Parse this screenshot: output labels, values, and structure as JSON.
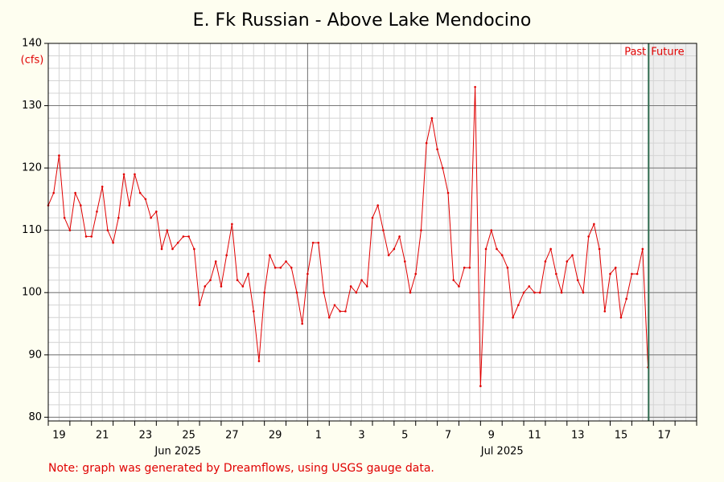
{
  "chart_data": {
    "type": "line",
    "title": "E. Fk Russian - Above Lake Mendocino",
    "ylabel": "(cfs)",
    "note": "Note: graph was generated by Dreamflows, using USGS gauge data.",
    "color": "#e00000",
    "x": [
      "2025-06-19T00:00",
      "2025-06-19T06:00",
      "2025-06-19T12:00",
      "2025-06-19T18:00",
      "2025-06-20T00:00",
      "2025-06-20T06:00",
      "2025-06-20T12:00",
      "2025-06-20T18:00",
      "2025-06-21T00:00",
      "2025-06-21T06:00",
      "2025-06-21T12:00",
      "2025-06-21T18:00",
      "2025-06-22T00:00",
      "2025-06-22T06:00",
      "2025-06-22T12:00",
      "2025-06-22T18:00",
      "2025-06-23T00:00",
      "2025-06-23T06:00",
      "2025-06-23T12:00",
      "2025-06-23T18:00",
      "2025-06-24T00:00",
      "2025-06-24T06:00",
      "2025-06-24T12:00",
      "2025-06-24T18:00",
      "2025-06-25T00:00",
      "2025-06-25T06:00",
      "2025-06-25T12:00",
      "2025-06-25T18:00",
      "2025-06-26T00:00",
      "2025-06-26T06:00",
      "2025-06-26T12:00",
      "2025-06-26T18:00",
      "2025-06-27T00:00",
      "2025-06-27T06:00",
      "2025-06-27T12:00",
      "2025-06-27T18:00",
      "2025-06-28T00:00",
      "2025-06-28T06:00",
      "2025-06-28T12:00",
      "2025-06-28T18:00",
      "2025-06-29T00:00",
      "2025-06-29T06:00",
      "2025-06-29T12:00",
      "2025-06-29T18:00",
      "2025-06-30T00:00",
      "2025-06-30T06:00",
      "2025-06-30T12:00",
      "2025-06-30T18:00",
      "2025-07-01T00:00",
      "2025-07-01T06:00",
      "2025-07-01T12:00",
      "2025-07-01T18:00",
      "2025-07-02T00:00",
      "2025-07-02T06:00",
      "2025-07-02T12:00",
      "2025-07-02T18:00",
      "2025-07-03T00:00",
      "2025-07-03T06:00",
      "2025-07-03T12:00",
      "2025-07-03T18:00",
      "2025-07-04T00:00",
      "2025-07-04T06:00",
      "2025-07-04T12:00",
      "2025-07-04T18:00",
      "2025-07-05T00:00",
      "2025-07-05T06:00",
      "2025-07-05T12:00",
      "2025-07-05T18:00",
      "2025-07-06T00:00",
      "2025-07-06T06:00",
      "2025-07-06T12:00",
      "2025-07-06T18:00",
      "2025-07-07T00:00",
      "2025-07-07T06:00",
      "2025-07-07T12:00",
      "2025-07-07T18:00",
      "2025-07-08T00:00",
      "2025-07-08T06:00",
      "2025-07-08T12:00",
      "2025-07-08T18:00",
      "2025-07-09T00:00",
      "2025-07-09T06:00",
      "2025-07-09T12:00",
      "2025-07-09T18:00",
      "2025-07-10T00:00",
      "2025-07-10T06:00",
      "2025-07-10T12:00",
      "2025-07-10T18:00",
      "2025-07-11T00:00",
      "2025-07-11T06:00",
      "2025-07-11T12:00",
      "2025-07-11T18:00",
      "2025-07-12T00:00",
      "2025-07-12T06:00",
      "2025-07-12T12:00",
      "2025-07-12T18:00",
      "2025-07-13T00:00",
      "2025-07-13T06:00",
      "2025-07-13T12:00",
      "2025-07-13T18:00",
      "2025-07-14T00:00",
      "2025-07-14T06:00",
      "2025-07-14T12:00",
      "2025-07-14T18:00",
      "2025-07-15T00:00",
      "2025-07-15T06:00",
      "2025-07-15T12:00",
      "2025-07-15T18:00",
      "2025-07-16T00:00",
      "2025-07-16T06:00",
      "2025-07-16T12:00",
      "2025-07-16T18:00"
    ],
    "values": [
      114,
      116,
      122,
      112,
      110,
      116,
      114,
      109,
      109,
      113,
      117,
      110,
      108,
      112,
      119,
      114,
      119,
      116,
      115,
      112,
      113,
      107,
      110,
      107,
      108,
      109,
      109,
      107,
      98,
      101,
      102,
      105,
      101,
      106,
      111,
      102,
      101,
      103,
      97,
      89,
      100,
      106,
      104,
      104,
      105,
      104,
      100,
      95,
      103,
      108,
      108,
      100,
      96,
      98,
      97,
      97,
      101,
      100,
      102,
      101,
      112,
      114,
      110,
      106,
      107,
      109,
      105,
      100,
      103,
      110,
      124,
      128,
      123,
      120,
      116,
      102,
      101,
      104,
      104,
      133,
      85,
      107,
      110,
      107,
      106,
      104,
      96,
      98,
      100,
      101,
      100,
      100,
      105,
      107,
      103,
      100,
      105,
      106,
      102,
      100,
      109,
      111,
      107,
      97,
      103,
      104,
      96,
      99,
      103,
      103,
      107,
      88
    ],
    "xlim": [
      "2025-06-19T00:00",
      "2025-07-19T00:00"
    ],
    "xticks": [
      {
        "value": "2025-06-19T12:00",
        "label": "19"
      },
      {
        "value": "2025-06-21T12:00",
        "label": "21"
      },
      {
        "value": "2025-06-23T12:00",
        "label": "23"
      },
      {
        "value": "2025-06-25T12:00",
        "label": "25"
      },
      {
        "value": "2025-06-27T12:00",
        "label": "27"
      },
      {
        "value": "2025-06-29T12:00",
        "label": "29"
      },
      {
        "value": "2025-07-01T12:00",
        "label": "1"
      },
      {
        "value": "2025-07-03T12:00",
        "label": "3"
      },
      {
        "value": "2025-07-05T12:00",
        "label": "5"
      },
      {
        "value": "2025-07-07T12:00",
        "label": "7"
      },
      {
        "value": "2025-07-09T12:00",
        "label": "9"
      },
      {
        "value": "2025-07-11T12:00",
        "label": "11"
      },
      {
        "value": "2025-07-13T12:00",
        "label": "13"
      },
      {
        "value": "2025-07-15T12:00",
        "label": "15"
      },
      {
        "value": "2025-07-17T12:00",
        "label": "17"
      }
    ],
    "month_labels": [
      {
        "value": "2025-06-25T00:00",
        "label": "Jun 2025"
      },
      {
        "value": "2025-07-10T00:00",
        "label": "Jul 2025"
      }
    ],
    "month_boundary": "2025-07-01T00:00",
    "ylim": [
      79.4,
      140
    ],
    "yticks": [
      80,
      90,
      100,
      110,
      120,
      130,
      140
    ],
    "y_minor_step": 2,
    "grid": true,
    "now": "2025-07-16T18:40",
    "past_label": "Past",
    "future_label": "Future"
  }
}
